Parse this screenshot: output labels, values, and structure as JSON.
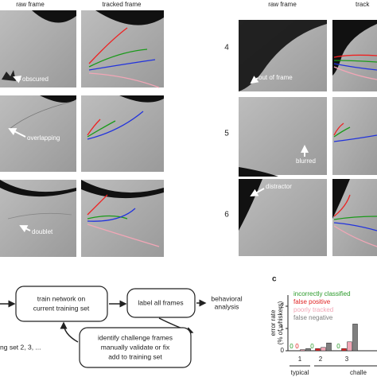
{
  "panel_a": {
    "headers": [
      "raw frame",
      "tracked frame"
    ],
    "annotations": [
      "obscured",
      "overlapping",
      "doublet"
    ]
  },
  "panel_b": {
    "headers": [
      "raw frame",
      "track"
    ],
    "rows": [
      "4",
      "5",
      "6"
    ],
    "annotations": [
      "out of frame",
      "blurred",
      "distractor"
    ]
  },
  "flowchart": {
    "input": "ng set 2, 3, ...",
    "train": [
      "train network on",
      "current training set"
    ],
    "label": "label all frames",
    "output": [
      "behavioral",
      "analysis"
    ],
    "identify": [
      "identify challenge frames",
      "manually validate or fix",
      "add to training set"
    ]
  },
  "chart_data": {
    "type": "bar",
    "panel_label": "c",
    "ylabel": [
      "error rate",
      "(% of whiskers)"
    ],
    "categories": [
      "1",
      "2",
      "3"
    ],
    "group_labels": [
      "typical",
      "challe"
    ],
    "series": [
      {
        "name": "incorrectly classified",
        "color": "#2a9a2a",
        "values": [
          0,
          0,
          0
        ]
      },
      {
        "name": "false positive",
        "color": "#e02424",
        "values": [
          0,
          0.1,
          0.1
        ]
      },
      {
        "name": "poorly tracked",
        "color": "#f2a6b6",
        "values": [
          0.05,
          0.15,
          0.4
        ]
      },
      {
        "name": "false negative",
        "color": "#7f7f7f",
        "values": [
          0.1,
          0.35,
          1.2
        ]
      }
    ],
    "ylim": [
      0,
      2.5
    ],
    "yticks": [
      0,
      1,
      2
    ]
  }
}
